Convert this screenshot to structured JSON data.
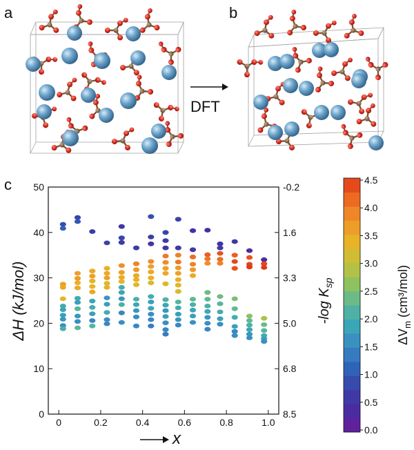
{
  "panels": {
    "a": "a",
    "b": "b",
    "c": "c",
    "arrow_label": "DFT"
  },
  "colors": {
    "atom_blue": "#6fa6cc",
    "atom_red": "#d42a1f",
    "atom_brown": "#8b6b4f",
    "box_line": "#9a9a9a"
  },
  "chart_data": {
    "type": "scatter",
    "xlabel": "x",
    "ylabel": "ΔH (kJ/mol)",
    "y2label": "-log K",
    "y2label_sub": "sp",
    "xlim": [
      -0.05,
      1.05
    ],
    "ylim": [
      0,
      50
    ],
    "xticks": [
      0,
      0.2,
      0.4,
      0.6,
      0.8,
      1.0
    ],
    "xtick_labels": [
      "0",
      "0.2",
      "0.4",
      "0.6",
      "0.8",
      "1.0"
    ],
    "yticks": [
      0,
      10,
      20,
      30,
      40,
      50
    ],
    "ytick_labels": [
      "0",
      "10",
      "20",
      "30",
      "40",
      "50"
    ],
    "y2ticks": [
      {
        "at": 50,
        "label": "-0.2"
      },
      {
        "at": 40,
        "label": "1.6"
      },
      {
        "at": 30,
        "label": "3.3"
      },
      {
        "at": 20,
        "label": "5.0"
      },
      {
        "at": 10,
        "label": "6.8"
      },
      {
        "at": 0,
        "label": "8.5"
      }
    ],
    "colorbar": {
      "label_main": "ΔV",
      "label_sub": "m",
      "label_unit": " (cm³/mol)",
      "min": 0.0,
      "max": 4.5,
      "ticks": [
        "4.5",
        "4.0",
        "3.5",
        "3.0",
        "2.5",
        "2.0",
        "1.5",
        "1.0",
        "0.5",
        "0.0"
      ],
      "colors": [
        "#6a1b9a",
        "#4b2ca0",
        "#3a3fa8",
        "#2f63b8",
        "#3a86c4",
        "#3aa6b7",
        "#5ab79a",
        "#8fc25f",
        "#c4c23a",
        "#e8b325",
        "#f0942a",
        "#ec6a22",
        "#df3b1b"
      ]
    },
    "points": [
      {
        "x": 0.02,
        "y": 41.8,
        "c": 0.9
      },
      {
        "x": 0.02,
        "y": 40.9,
        "c": 1.1
      },
      {
        "x": 0.02,
        "y": 28.6,
        "c": 3.6
      },
      {
        "x": 0.02,
        "y": 27.9,
        "c": 3.5
      },
      {
        "x": 0.02,
        "y": 25.4,
        "c": 3.3
      },
      {
        "x": 0.02,
        "y": 23.8,
        "c": 2.0
      },
      {
        "x": 0.02,
        "y": 23.0,
        "c": 1.9
      },
      {
        "x": 0.02,
        "y": 21.8,
        "c": 1.8
      },
      {
        "x": 0.02,
        "y": 20.9,
        "c": 1.7
      },
      {
        "x": 0.02,
        "y": 19.5,
        "c": 1.6
      },
      {
        "x": 0.02,
        "y": 18.8,
        "c": 2.1
      },
      {
        "x": 0.09,
        "y": 43.3,
        "c": 0.8
      },
      {
        "x": 0.09,
        "y": 42.4,
        "c": 1.0
      },
      {
        "x": 0.09,
        "y": 31.0,
        "c": 3.6
      },
      {
        "x": 0.09,
        "y": 29.9,
        "c": 3.7
      },
      {
        "x": 0.09,
        "y": 28.9,
        "c": 3.4
      },
      {
        "x": 0.09,
        "y": 27.8,
        "c": 3.5
      },
      {
        "x": 0.09,
        "y": 25.5,
        "c": 2.0
      },
      {
        "x": 0.09,
        "y": 24.6,
        "c": 1.8
      },
      {
        "x": 0.09,
        "y": 23.2,
        "c": 2.2
      },
      {
        "x": 0.09,
        "y": 21.6,
        "c": 1.7
      },
      {
        "x": 0.09,
        "y": 20.4,
        "c": 1.6
      },
      {
        "x": 0.09,
        "y": 19.0,
        "c": 2.3
      },
      {
        "x": 0.16,
        "y": 40.2,
        "c": 0.7
      },
      {
        "x": 0.16,
        "y": 31.5,
        "c": 3.5
      },
      {
        "x": 0.16,
        "y": 30.4,
        "c": 3.6
      },
      {
        "x": 0.16,
        "y": 29.3,
        "c": 3.4
      },
      {
        "x": 0.16,
        "y": 28.1,
        "c": 3.3
      },
      {
        "x": 0.16,
        "y": 26.9,
        "c": 3.5
      },
      {
        "x": 0.16,
        "y": 24.9,
        "c": 1.9
      },
      {
        "x": 0.16,
        "y": 23.5,
        "c": 2.0
      },
      {
        "x": 0.16,
        "y": 22.1,
        "c": 1.8
      },
      {
        "x": 0.16,
        "y": 20.6,
        "c": 1.5
      },
      {
        "x": 0.16,
        "y": 19.4,
        "c": 2.2
      },
      {
        "x": 0.23,
        "y": 37.7,
        "c": 0.8
      },
      {
        "x": 0.23,
        "y": 32.1,
        "c": 3.4
      },
      {
        "x": 0.23,
        "y": 31.0,
        "c": 3.5
      },
      {
        "x": 0.23,
        "y": 30.0,
        "c": 3.6
      },
      {
        "x": 0.23,
        "y": 28.8,
        "c": 3.2
      },
      {
        "x": 0.23,
        "y": 27.9,
        "c": 3.4
      },
      {
        "x": 0.23,
        "y": 25.6,
        "c": 1.7
      },
      {
        "x": 0.23,
        "y": 24.2,
        "c": 1.8
      },
      {
        "x": 0.23,
        "y": 22.4,
        "c": 2.0
      },
      {
        "x": 0.23,
        "y": 20.8,
        "c": 1.6
      },
      {
        "x": 0.23,
        "y": 19.9,
        "c": 1.5
      },
      {
        "x": 0.3,
        "y": 41.3,
        "c": 0.6
      },
      {
        "x": 0.3,
        "y": 38.8,
        "c": 0.8
      },
      {
        "x": 0.3,
        "y": 37.8,
        "c": 0.7
      },
      {
        "x": 0.3,
        "y": 32.7,
        "c": 3.8
      },
      {
        "x": 0.3,
        "y": 31.2,
        "c": 3.6
      },
      {
        "x": 0.3,
        "y": 30.1,
        "c": 3.5
      },
      {
        "x": 0.3,
        "y": 29.2,
        "c": 3.3
      },
      {
        "x": 0.3,
        "y": 27.9,
        "c": 2.0
      },
      {
        "x": 0.3,
        "y": 26.8,
        "c": 1.9
      },
      {
        "x": 0.3,
        "y": 25.4,
        "c": 1.7
      },
      {
        "x": 0.3,
        "y": 24.1,
        "c": 2.1
      },
      {
        "x": 0.3,
        "y": 22.3,
        "c": 1.5
      },
      {
        "x": 0.3,
        "y": 20.2,
        "c": 1.6
      },
      {
        "x": 0.37,
        "y": 36.6,
        "c": 0.7
      },
      {
        "x": 0.37,
        "y": 33.1,
        "c": 3.9
      },
      {
        "x": 0.37,
        "y": 31.8,
        "c": 3.7
      },
      {
        "x": 0.37,
        "y": 30.5,
        "c": 3.5
      },
      {
        "x": 0.37,
        "y": 29.6,
        "c": 3.4
      },
      {
        "x": 0.37,
        "y": 28.5,
        "c": 3.3
      },
      {
        "x": 0.37,
        "y": 25.3,
        "c": 2.1
      },
      {
        "x": 0.37,
        "y": 24.1,
        "c": 1.9
      },
      {
        "x": 0.37,
        "y": 22.8,
        "c": 1.7
      },
      {
        "x": 0.37,
        "y": 21.4,
        "c": 1.6
      },
      {
        "x": 0.37,
        "y": 19.4,
        "c": 1.5
      },
      {
        "x": 0.44,
        "y": 43.5,
        "c": 0.9
      },
      {
        "x": 0.44,
        "y": 39.0,
        "c": 0.7
      },
      {
        "x": 0.44,
        "y": 37.5,
        "c": 0.6
      },
      {
        "x": 0.44,
        "y": 33.6,
        "c": 3.8
      },
      {
        "x": 0.44,
        "y": 32.5,
        "c": 3.6
      },
      {
        "x": 0.44,
        "y": 31.3,
        "c": 3.5
      },
      {
        "x": 0.44,
        "y": 30.0,
        "c": 3.4
      },
      {
        "x": 0.44,
        "y": 28.9,
        "c": 3.2
      },
      {
        "x": 0.44,
        "y": 25.9,
        "c": 2.0
      },
      {
        "x": 0.44,
        "y": 24.7,
        "c": 1.8
      },
      {
        "x": 0.44,
        "y": 23.3,
        "c": 1.9
      },
      {
        "x": 0.44,
        "y": 22.0,
        "c": 1.6
      },
      {
        "x": 0.44,
        "y": 20.8,
        "c": 1.5
      },
      {
        "x": 0.44,
        "y": 19.4,
        "c": 1.4
      },
      {
        "x": 0.51,
        "y": 40.0,
        "c": 0.8
      },
      {
        "x": 0.51,
        "y": 38.2,
        "c": 0.7
      },
      {
        "x": 0.51,
        "y": 36.6,
        "c": 0.6
      },
      {
        "x": 0.51,
        "y": 34.8,
        "c": 4.0
      },
      {
        "x": 0.51,
        "y": 33.4,
        "c": 3.8
      },
      {
        "x": 0.51,
        "y": 32.1,
        "c": 3.6
      },
      {
        "x": 0.51,
        "y": 31.0,
        "c": 3.5
      },
      {
        "x": 0.51,
        "y": 28.7,
        "c": 3.3
      },
      {
        "x": 0.51,
        "y": 25.2,
        "c": 2.1
      },
      {
        "x": 0.51,
        "y": 24.0,
        "c": 1.9
      },
      {
        "x": 0.51,
        "y": 22.8,
        "c": 1.7
      },
      {
        "x": 0.51,
        "y": 21.5,
        "c": 1.8
      },
      {
        "x": 0.51,
        "y": 20.1,
        "c": 1.6
      },
      {
        "x": 0.51,
        "y": 18.6,
        "c": 1.5
      },
      {
        "x": 0.51,
        "y": 17.6,
        "c": 1.4
      },
      {
        "x": 0.57,
        "y": 42.9,
        "c": 0.8
      },
      {
        "x": 0.57,
        "y": 36.6,
        "c": 0.6
      },
      {
        "x": 0.57,
        "y": 35.0,
        "c": 3.9
      },
      {
        "x": 0.57,
        "y": 33.5,
        "c": 4.0
      },
      {
        "x": 0.57,
        "y": 32.2,
        "c": 3.7
      },
      {
        "x": 0.57,
        "y": 31.0,
        "c": 3.6
      },
      {
        "x": 0.57,
        "y": 29.6,
        "c": 3.4
      },
      {
        "x": 0.57,
        "y": 28.4,
        "c": 3.3
      },
      {
        "x": 0.57,
        "y": 27.0,
        "c": 3.2
      },
      {
        "x": 0.57,
        "y": 24.7,
        "c": 2.2
      },
      {
        "x": 0.57,
        "y": 23.4,
        "c": 2.0
      },
      {
        "x": 0.57,
        "y": 22.0,
        "c": 1.8
      },
      {
        "x": 0.57,
        "y": 20.8,
        "c": 1.7
      },
      {
        "x": 0.57,
        "y": 19.6,
        "c": 1.5
      },
      {
        "x": 0.64,
        "y": 40.4,
        "c": 0.5
      },
      {
        "x": 0.64,
        "y": 36.2,
        "c": 0.6
      },
      {
        "x": 0.64,
        "y": 34.6,
        "c": 4.1
      },
      {
        "x": 0.64,
        "y": 33.0,
        "c": 3.9
      },
      {
        "x": 0.64,
        "y": 31.8,
        "c": 3.7
      },
      {
        "x": 0.64,
        "y": 30.5,
        "c": 3.5
      },
      {
        "x": 0.64,
        "y": 25.3,
        "c": 2.3
      },
      {
        "x": 0.64,
        "y": 24.1,
        "c": 2.1
      },
      {
        "x": 0.64,
        "y": 22.9,
        "c": 1.9
      },
      {
        "x": 0.64,
        "y": 21.6,
        "c": 1.8
      },
      {
        "x": 0.64,
        "y": 20.2,
        "c": 1.6
      },
      {
        "x": 0.71,
        "y": 40.5,
        "c": 0.4
      },
      {
        "x": 0.71,
        "y": 35.1,
        "c": 4.2
      },
      {
        "x": 0.71,
        "y": 34.2,
        "c": 4.0
      },
      {
        "x": 0.71,
        "y": 33.2,
        "c": 3.8
      },
      {
        "x": 0.71,
        "y": 26.8,
        "c": 2.4
      },
      {
        "x": 0.71,
        "y": 25.3,
        "c": 2.3
      },
      {
        "x": 0.71,
        "y": 23.8,
        "c": 2.1
      },
      {
        "x": 0.71,
        "y": 22.6,
        "c": 1.9
      },
      {
        "x": 0.71,
        "y": 21.3,
        "c": 1.7
      },
      {
        "x": 0.71,
        "y": 20.0,
        "c": 1.6
      },
      {
        "x": 0.71,
        "y": 18.7,
        "c": 1.5
      },
      {
        "x": 0.77,
        "y": 37.5,
        "c": 0.5
      },
      {
        "x": 0.77,
        "y": 36.6,
        "c": 0.7
      },
      {
        "x": 0.77,
        "y": 35.4,
        "c": 4.3
      },
      {
        "x": 0.77,
        "y": 34.1,
        "c": 4.1
      },
      {
        "x": 0.77,
        "y": 33.2,
        "c": 3.9
      },
      {
        "x": 0.77,
        "y": 25.9,
        "c": 2.4
      },
      {
        "x": 0.77,
        "y": 24.3,
        "c": 2.2
      },
      {
        "x": 0.77,
        "y": 22.5,
        "c": 2.0
      },
      {
        "x": 0.77,
        "y": 21.0,
        "c": 1.8
      },
      {
        "x": 0.77,
        "y": 19.8,
        "c": 1.6
      },
      {
        "x": 0.84,
        "y": 38.0,
        "c": 0.6
      },
      {
        "x": 0.84,
        "y": 35.0,
        "c": 4.2
      },
      {
        "x": 0.84,
        "y": 33.6,
        "c": 4.4
      },
      {
        "x": 0.84,
        "y": 32.1,
        "c": 4.3
      },
      {
        "x": 0.84,
        "y": 25.4,
        "c": 2.5
      },
      {
        "x": 0.84,
        "y": 23.2,
        "c": 2.3
      },
      {
        "x": 0.84,
        "y": 21.3,
        "c": 2.0
      },
      {
        "x": 0.84,
        "y": 19.3,
        "c": 1.8
      },
      {
        "x": 0.84,
        "y": 18.2,
        "c": 1.5
      },
      {
        "x": 0.84,
        "y": 17.3,
        "c": 1.6
      },
      {
        "x": 0.91,
        "y": 36.0,
        "c": 0.4
      },
      {
        "x": 0.91,
        "y": 34.5,
        "c": 4.3
      },
      {
        "x": 0.91,
        "y": 33.0,
        "c": 4.4
      },
      {
        "x": 0.91,
        "y": 32.4,
        "c": 4.5
      },
      {
        "x": 0.91,
        "y": 21.6,
        "c": 2.6
      },
      {
        "x": 0.91,
        "y": 20.6,
        "c": 2.3
      },
      {
        "x": 0.91,
        "y": 19.6,
        "c": 2.1
      },
      {
        "x": 0.91,
        "y": 18.6,
        "c": 1.9
      },
      {
        "x": 0.91,
        "y": 17.6,
        "c": 1.7
      },
      {
        "x": 0.91,
        "y": 16.8,
        "c": 1.6
      },
      {
        "x": 0.98,
        "y": 34.0,
        "c": 0.3
      },
      {
        "x": 0.98,
        "y": 33.1,
        "c": 4.4
      },
      {
        "x": 0.98,
        "y": 32.3,
        "c": 4.5
      },
      {
        "x": 0.98,
        "y": 21.1,
        "c": 2.8
      },
      {
        "x": 0.98,
        "y": 19.7,
        "c": 2.4
      },
      {
        "x": 0.98,
        "y": 18.4,
        "c": 2.2
      },
      {
        "x": 0.98,
        "y": 17.3,
        "c": 2.0
      },
      {
        "x": 0.98,
        "y": 16.6,
        "c": 1.8
      },
      {
        "x": 0.98,
        "y": 16.0,
        "c": 1.6
      }
    ]
  }
}
